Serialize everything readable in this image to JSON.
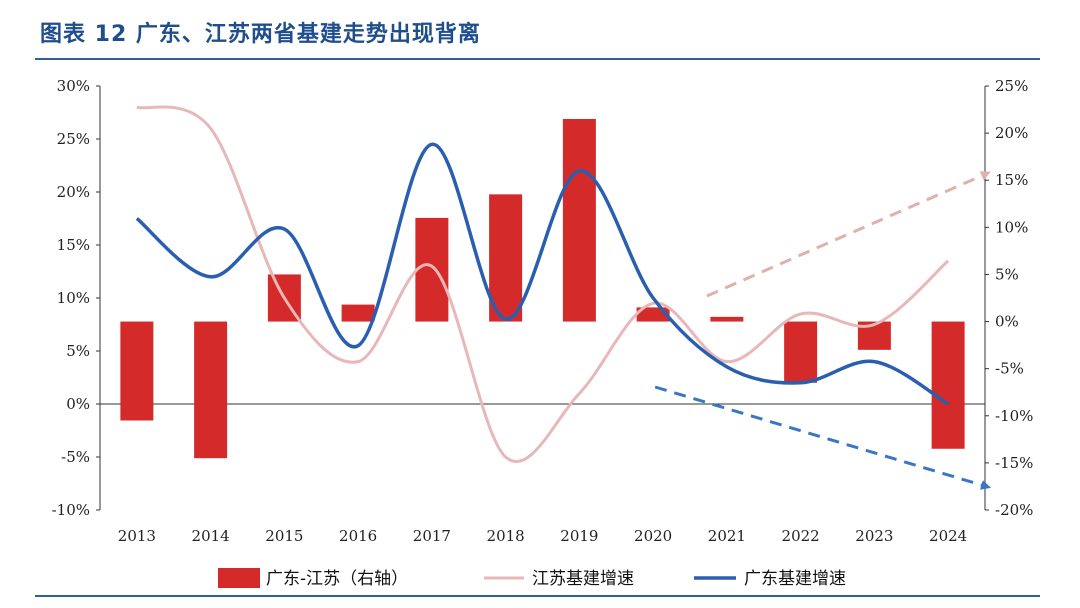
{
  "title": "图表 12    广东、江苏两省基建走势出现背离",
  "colors": {
    "bar": "#d42a2a",
    "jiangsu_line": "#e8b8b8",
    "guangdong_line": "#2a5fb0",
    "arrow_up": "#e0b0ac",
    "arrow_down": "#3a76c4",
    "axis": "#333333",
    "rule": "#2f5f9f"
  },
  "chart_data": {
    "type": "bar+line",
    "categories": [
      "2013",
      "2014",
      "2015",
      "2016",
      "2017",
      "2018",
      "2019",
      "2020",
      "2021",
      "2022",
      "2023",
      "2024"
    ],
    "left_axis": {
      "ticks": [
        "30%",
        "25%",
        "20%",
        "15%",
        "10%",
        "5%",
        "0%",
        "-5%",
        "-10%"
      ],
      "ylim": [
        -10,
        30
      ]
    },
    "right_axis": {
      "ticks": [
        "25%",
        "20%",
        "15%",
        "10%",
        "5%",
        "0%",
        "-5%",
        "-10%",
        "-15%",
        "-20%"
      ],
      "ylim": [
        -20,
        25
      ]
    },
    "series": [
      {
        "name": "广东-江苏（右轴）",
        "type": "bar",
        "axis": "right",
        "values": [
          -10.5,
          -14.5,
          5.0,
          1.8,
          11.0,
          13.5,
          21.5,
          1.5,
          0.5,
          -6.5,
          -3.0,
          -13.5
        ]
      },
      {
        "name": "江苏基建增速",
        "type": "line",
        "axis": "left",
        "values": [
          28.0,
          26.0,
          10.0,
          4.0,
          13.0,
          -5.0,
          1.0,
          9.5,
          4.0,
          8.5,
          7.5,
          13.5
        ]
      },
      {
        "name": "广东基建增速",
        "type": "line",
        "axis": "left",
        "values": [
          17.5,
          12.0,
          16.5,
          5.5,
          24.5,
          8.0,
          22.0,
          10.0,
          3.5,
          2.0,
          4.0,
          0.0
        ]
      }
    ],
    "legend": [
      "广东-江苏（右轴）",
      "江苏基建增速",
      "广东基建增速"
    ],
    "legend_position": "bottom",
    "grid": false,
    "annotations": [
      {
        "type": "dashed-arrow",
        "direction": "up",
        "color": "pink"
      },
      {
        "type": "dashed-arrow",
        "direction": "down",
        "color": "blue"
      }
    ]
  }
}
